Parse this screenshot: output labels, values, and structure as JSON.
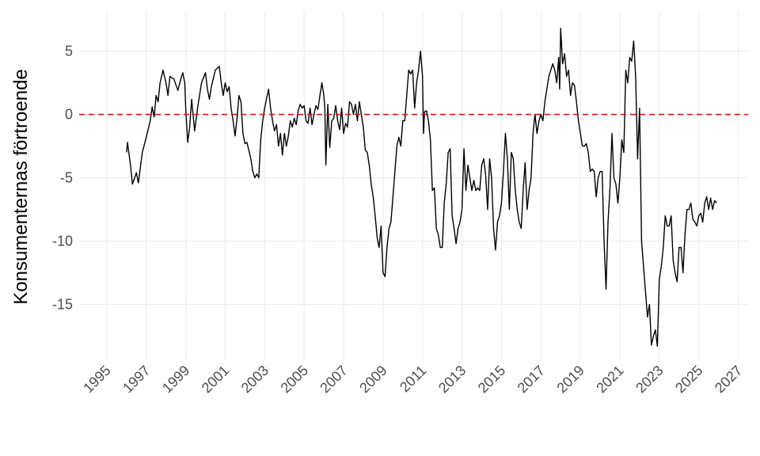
{
  "chart_data": {
    "type": "line",
    "y_label": "Konsumenternas förtroende",
    "xlim": [
      1993.6,
      2027.5
    ],
    "ylim": [
      -19.4,
      8.1
    ],
    "xticks": [
      1995,
      1997,
      1999,
      2001,
      2003,
      2005,
      2007,
      2009,
      2011,
      2013,
      2015,
      2017,
      2019,
      2021,
      2023,
      2025,
      2027
    ],
    "yticks": [
      -15,
      -10,
      -5,
      0,
      5
    ],
    "grid": true,
    "hline": {
      "value": 0,
      "color": "#e41a1c"
    },
    "series": [
      {
        "color": "#000000",
        "x": [
          1996,
          1996.05,
          1996.2,
          1996.3,
          1996.5,
          1996.6,
          1996.8,
          1997,
          1997.2,
          1997.3,
          1997.4,
          1997.5,
          1997.6,
          1997.7,
          1997.85,
          1998,
          1998.1,
          1998.2,
          1998.4,
          1998.6,
          1998.75,
          1998.85,
          1998.95,
          1999,
          1999.1,
          1999.2,
          1999.3,
          1999.45,
          1999.6,
          1999.8,
          2000,
          2000.1,
          2000.2,
          2000.3,
          2000.5,
          2000.7,
          2000.8,
          2000.9,
          2001,
          2001.1,
          2001.2,
          2001.3,
          2001.4,
          2001.5,
          2001.6,
          2001.7,
          2001.8,
          2001.9,
          2002,
          2002.1,
          2002.3,
          2002.4,
          2002.5,
          2002.6,
          2002.7,
          2002.8,
          2002.9,
          2003,
          2003.1,
          2003.2,
          2003.3,
          2003.4,
          2003.5,
          2003.6,
          2003.7,
          2003.8,
          2003.9,
          2004,
          2004.1,
          2004.2,
          2004.3,
          2004.4,
          2004.5,
          2004.6,
          2004.7,
          2004.8,
          2004.9,
          2005,
          2005.1,
          2005.2,
          2005.3,
          2005.4,
          2005.5,
          2005.6,
          2005.7,
          2005.8,
          2005.9,
          2006,
          2006.05,
          2006.1,
          2006.2,
          2006.3,
          2006.4,
          2006.5,
          2006.6,
          2006.7,
          2006.8,
          2006.9,
          2007,
          2007.1,
          2007.2,
          2007.3,
          2007.4,
          2007.5,
          2007.6,
          2007.7,
          2007.8,
          2007.9,
          2008,
          2008.1,
          2008.2,
          2008.3,
          2008.4,
          2008.5,
          2008.6,
          2008.7,
          2008.8,
          2008.9,
          2009,
          2009.1,
          2009.2,
          2009.3,
          2009.4,
          2009.5,
          2009.6,
          2009.7,
          2009.8,
          2009.9,
          2010,
          2010.1,
          2010.2,
          2010.3,
          2010.4,
          2010.5,
          2010.6,
          2010.7,
          2010.8,
          2010.9,
          2011,
          2011.05,
          2011.1,
          2011.2,
          2011.3,
          2011.4,
          2011.5,
          2011.6,
          2011.7,
          2011.8,
          2011.9,
          2012,
          2012.1,
          2012.2,
          2012.3,
          2012.4,
          2012.5,
          2012.6,
          2012.7,
          2012.8,
          2012.9,
          2013,
          2013.1,
          2013.2,
          2013.3,
          2013.4,
          2013.5,
          2013.6,
          2013.7,
          2013.8,
          2013.9,
          2014,
          2014.1,
          2014.2,
          2014.3,
          2014.4,
          2014.5,
          2014.6,
          2014.7,
          2014.8,
          2014.9,
          2015,
          2015.1,
          2015.2,
          2015.3,
          2015.4,
          2015.5,
          2015.6,
          2015.7,
          2015.8,
          2015.9,
          2016,
          2016.1,
          2016.2,
          2016.3,
          2016.4,
          2016.5,
          2016.6,
          2016.7,
          2016.8,
          2016.9,
          2017,
          2017.1,
          2017.2,
          2017.3,
          2017.4,
          2017.5,
          2017.6,
          2017.7,
          2017.8,
          2017.9,
          2017.95,
          2018,
          2018.1,
          2018.2,
          2018.3,
          2018.4,
          2018.5,
          2018.6,
          2018.7,
          2018.8,
          2018.9,
          2019,
          2019.1,
          2019.2,
          2019.3,
          2019.4,
          2019.5,
          2019.6,
          2019.7,
          2019.8,
          2019.9,
          2020,
          2020.1,
          2020.2,
          2020.3,
          2020.4,
          2020.5,
          2020.6,
          2020.7,
          2020.8,
          2020.9,
          2021,
          2021.1,
          2021.2,
          2021.3,
          2021.4,
          2021.5,
          2021.6,
          2021.7,
          2021.8,
          2021.9,
          2022,
          2022.1,
          2022.2,
          2022.3,
          2022.4,
          2022.5,
          2022.6,
          2022.7,
          2022.8,
          2022.9,
          2023,
          2023.1,
          2023.2,
          2023.3,
          2023.4,
          2023.5,
          2023.6,
          2023.7,
          2023.8,
          2023.9,
          2024,
          2024.1,
          2024.2,
          2024.3,
          2024.4,
          2024.5,
          2024.6,
          2024.7,
          2024.8,
          2024.9,
          2025,
          2025.1,
          2025.2,
          2025.3,
          2025.4,
          2025.5,
          2025.6,
          2025.7,
          2025.8,
          2025.9
        ],
        "values": [
          -3,
          -2.2,
          -4,
          -5.5,
          -4.6,
          -5.4,
          -3,
          -1.8,
          -0.5,
          0.6,
          -0.2,
          1.5,
          1,
          2.5,
          3.5,
          2.5,
          1.5,
          3,
          2.8,
          1.9,
          2.8,
          3.3,
          2.5,
          0.5,
          -2.2,
          -1,
          1.2,
          -1.3,
          0.5,
          2.5,
          3.3,
          2,
          1.2,
          2.2,
          3.5,
          3.8,
          2.5,
          1.5,
          2.5,
          1.8,
          2.2,
          0.5,
          -0.5,
          -1.7,
          -0.3,
          1.5,
          1,
          -1.5,
          -2.3,
          -2.2,
          -3.5,
          -4.5,
          -5,
          -4.7,
          -5,
          -2,
          -0.5,
          0.5,
          1.3,
          2,
          0.5,
          -0.5,
          -1.3,
          -0.8,
          -2.5,
          -1.5,
          -3.2,
          -1.5,
          -2.5,
          -1.7,
          -0.5,
          -1,
          -0.3,
          -0.8,
          0.3,
          0.8,
          0.5,
          0.7,
          -0.5,
          -0.7,
          0.5,
          -0.8,
          0,
          0.7,
          0.4,
          1.5,
          2.5,
          1.5,
          0.5,
          -4,
          0.8,
          -2.6,
          -0.5,
          -0.3,
          0.7,
          -0.5,
          -1.2,
          0.5,
          -1.5,
          -0.7,
          -1,
          1,
          0.8,
          0,
          0.8,
          -0.5,
          1,
          0,
          -1,
          -2.8,
          -3,
          -4,
          -5.5,
          -6.5,
          -8,
          -9.7,
          -10.5,
          -8.8,
          -12.5,
          -12.8,
          -10.5,
          -9,
          -8.5,
          -6.5,
          -4.5,
          -2.5,
          -1.8,
          -2.5,
          -0.5,
          -0.5,
          1.5,
          3.5,
          3.2,
          3.5,
          0.5,
          2.5,
          3.5,
          5,
          3,
          -1.5,
          0.2,
          0.3,
          -0.5,
          -2,
          -6,
          -5.8,
          -9,
          -9.5,
          -10.5,
          -10.5,
          -7,
          -5.5,
          -3,
          -2.7,
          -8,
          -9,
          -10.2,
          -9,
          -8.5,
          -7.5,
          -2.7,
          -6,
          -4,
          -5,
          -6,
          -5.2,
          -6,
          -5.8,
          -6,
          -4,
          -3.5,
          -4.8,
          -7.5,
          -3.5,
          -5,
          -9,
          -10.7,
          -8.5,
          -8,
          -7,
          -4.5,
          -1.5,
          -3.5,
          -7.5,
          -3,
          -3.5,
          -6,
          -7.5,
          -8.5,
          -9,
          -6,
          -3.8,
          -7.5,
          -6,
          -5,
          -1.5,
          0,
          -1.5,
          -0.5,
          0,
          -0.5,
          1,
          2,
          3,
          3.5,
          4,
          3.5,
          2.5,
          4.5,
          2,
          6.8,
          4,
          4.8,
          3,
          3.5,
          1.5,
          2.5,
          2.3,
          1,
          -0.5,
          -1.5,
          -2.5,
          -2.5,
          -2.3,
          -3,
          -4.5,
          -4.3,
          -4.5,
          -6.5,
          -5,
          -4.5,
          -4.5,
          -10,
          -13.8,
          -8.5,
          -5.8,
          -1.5,
          -5,
          -5.5,
          -7,
          -5,
          -2,
          -3,
          3.5,
          2.5,
          4.5,
          4.2,
          5.8,
          3,
          -3.5,
          0.5,
          -10,
          -12,
          -14,
          -16,
          -15,
          -18.2,
          -17.5,
          -17,
          -18.3,
          -13,
          -12,
          -10.5,
          -8,
          -8.8,
          -8.8,
          -8,
          -11.5,
          -12.5,
          -13.2,
          -10.5,
          -10.5,
          -12.5,
          -9.5,
          -7.5,
          -7.5,
          -7,
          -8.3,
          -8.5,
          -8.8,
          -8,
          -7.8,
          -8.5,
          -7,
          -6.5,
          -7.5,
          -6.6,
          -7.5,
          -6.8,
          -7
        ]
      }
    ]
  }
}
